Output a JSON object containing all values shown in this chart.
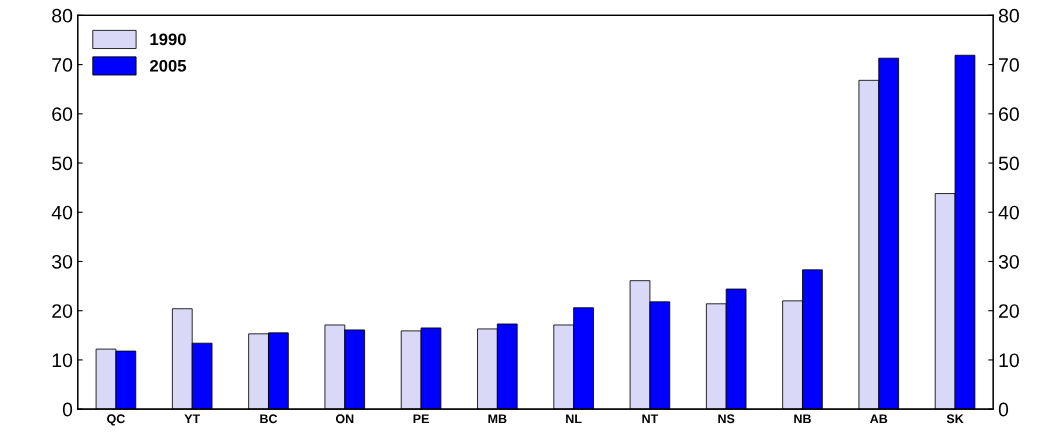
{
  "chart_data": {
    "type": "bar",
    "categories": [
      "QC",
      "YT",
      "BC",
      "ON",
      "PE",
      "MB",
      "NL",
      "NT",
      "NS",
      "NB",
      "AB",
      "SK"
    ],
    "series": [
      {
        "name": "1990",
        "color": "#d9d9f7",
        "values": [
          12.2,
          20.4,
          15.3,
          17.1,
          15.9,
          16.3,
          17.1,
          26.1,
          21.4,
          22.0,
          66.8,
          43.8
        ]
      },
      {
        "name": "2005",
        "color": "#0000ff",
        "values": [
          11.8,
          13.4,
          15.5,
          16.1,
          16.5,
          17.3,
          20.6,
          21.8,
          24.4,
          28.3,
          71.3,
          71.9
        ]
      }
    ],
    "ylim": [
      0,
      80
    ],
    "yticks": [
      0,
      10,
      20,
      30,
      40,
      50,
      60,
      70,
      80
    ],
    "y2lim": [
      0,
      80
    ],
    "y2ticks": [
      0,
      10,
      20,
      30,
      40,
      50,
      60,
      70,
      80
    ],
    "grid": false,
    "legend": "top left"
  }
}
